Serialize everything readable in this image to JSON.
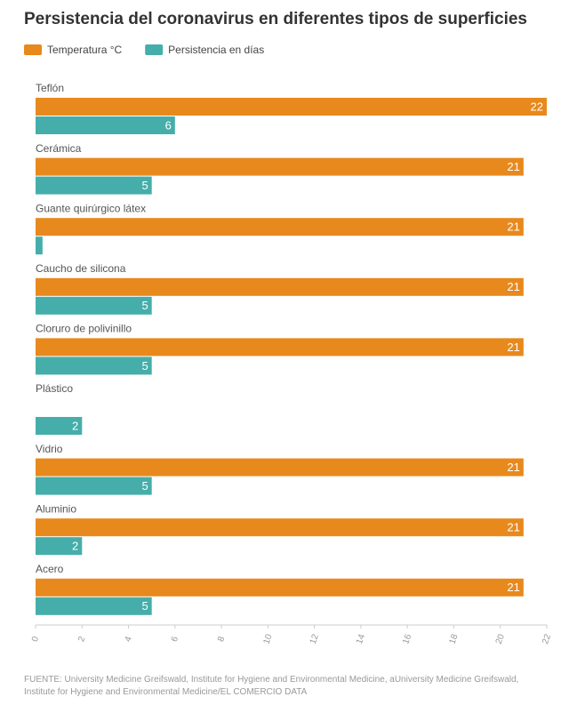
{
  "chart_data": {
    "type": "bar",
    "orientation": "horizontal",
    "title": "Persistencia del coronavirus en diferentes tipos de superficies",
    "categories": [
      "Teflón",
      "Cerámica",
      "Guante quirúrgico látex",
      "Caucho de silicona",
      "Cloruro de polivinillo",
      "Plástico",
      "Vidrio",
      "Aluminio",
      "Acero"
    ],
    "series": [
      {
        "name": "Temperatura °C",
        "color": "#e8891d",
        "values": [
          22,
          21,
          21,
          21,
          21,
          null,
          21,
          21,
          21
        ]
      },
      {
        "name": "Persistencia en días",
        "color": "#45aeaa",
        "values": [
          6,
          5,
          0.3,
          5,
          5,
          2,
          5,
          2,
          5
        ],
        "value_labels": [
          "6",
          "5",
          null,
          "5",
          "5",
          "2",
          "5",
          "2",
          "5"
        ]
      }
    ],
    "xlim": [
      0,
      22
    ],
    "xticks": [
      0,
      2,
      4,
      6,
      8,
      10,
      12,
      14,
      16,
      18,
      20,
      22
    ],
    "legend": "top-left",
    "source": "FUENTE: University Medicine Greifswald, Institute for Hygiene and Environmental Medicine, aUniversity Medicine Greifswald, Institute for Hygiene and Environmental Medicine/EL COMERCIO DATA"
  }
}
